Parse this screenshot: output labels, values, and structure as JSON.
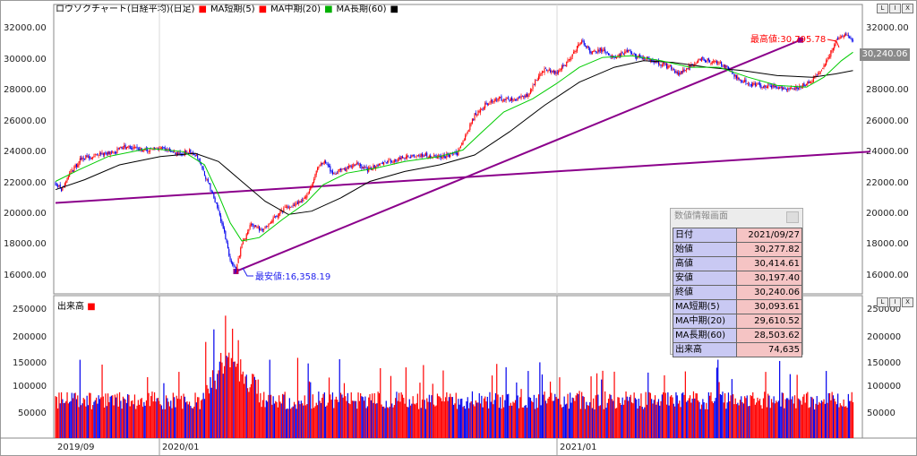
{
  "legend": {
    "title": "ロウソクチャート(日経平均)(日足)",
    "ma_short": "MA短期(5)",
    "ma_mid": "MA中期(20)",
    "ma_long": "MA長期(60)"
  },
  "window_buttons": [
    "L",
    "I",
    "X"
  ],
  "price_axis": {
    "ticks": [
      "32000.00",
      "30000.00",
      "28000.00",
      "26000.00",
      "24000.00",
      "22000.00",
      "20000.00",
      "18000.00",
      "16000.00"
    ],
    "right_ticks": [
      "32000.00",
      "28000.00",
      "26000.00",
      "24000.00",
      "22000.00",
      "20000.00",
      "18000.00",
      "16000.00"
    ],
    "last_price": "30,240.06"
  },
  "annotations": {
    "high": "最高値:30,795.78",
    "low": "最安値:16,358.19"
  },
  "volume": {
    "title": "出来高",
    "ticks": [
      "250000",
      "200000",
      "150000",
      "100000",
      "50000"
    ]
  },
  "date_axis": [
    "2019/09",
    "2020/01",
    "2021/01"
  ],
  "info_panel": {
    "title": "数値情報画面",
    "rows": [
      {
        "label": "日付",
        "value": "2021/09/27"
      },
      {
        "label": "始値",
        "value": "30,277.82"
      },
      {
        "label": "高値",
        "value": "30,414.61"
      },
      {
        "label": "安値",
        "value": "30,197.40"
      },
      {
        "label": "終値",
        "value": "30,240.06"
      },
      {
        "label": "MA短期(5)",
        "value": "30,093.61"
      },
      {
        "label": "MA中期(20)",
        "value": "29,610.52"
      },
      {
        "label": "MA長期(60)",
        "value": "28,503.62"
      },
      {
        "label": "出来高",
        "value": "74,635"
      }
    ]
  },
  "colors": {
    "up": "#ff0000",
    "down": "#0000ee",
    "ma_short": "#ff0000",
    "ma_mid": "#00cc00",
    "ma_long": "#000000",
    "trendline": "#8b008b"
  },
  "chart_data": {
    "type": "candlestick",
    "price_range": [
      15000,
      32500
    ],
    "volume_range": [
      0,
      270000
    ],
    "close_path": [
      [
        0,
        21700
      ],
      [
        5,
        21300
      ],
      [
        12,
        22200
      ],
      [
        22,
        23200
      ],
      [
        35,
        23400
      ],
      [
        48,
        23500
      ],
      [
        60,
        23900
      ],
      [
        75,
        23700
      ],
      [
        90,
        23800
      ],
      [
        105,
        23500
      ],
      [
        115,
        23600
      ],
      [
        122,
        23300
      ],
      [
        130,
        21900
      ],
      [
        138,
        20400
      ],
      [
        145,
        18800
      ],
      [
        150,
        17000
      ],
      [
        155,
        16400
      ],
      [
        160,
        18000
      ],
      [
        168,
        19200
      ],
      [
        178,
        18800
      ],
      [
        188,
        19600
      ],
      [
        198,
        20200
      ],
      [
        208,
        20500
      ],
      [
        218,
        21100
      ],
      [
        224,
        22400
      ],
      [
        230,
        23000
      ],
      [
        238,
        22300
      ],
      [
        248,
        22500
      ],
      [
        258,
        22900
      ],
      [
        268,
        22500
      ],
      [
        278,
        22800
      ],
      [
        290,
        23100
      ],
      [
        302,
        23300
      ],
      [
        315,
        23400
      ],
      [
        330,
        23300
      ],
      [
        345,
        23500
      ],
      [
        352,
        24500
      ],
      [
        360,
        25800
      ],
      [
        370,
        26500
      ],
      [
        382,
        26800
      ],
      [
        395,
        26700
      ],
      [
        405,
        27000
      ],
      [
        412,
        27800
      ],
      [
        420,
        28600
      ],
      [
        430,
        28400
      ],
      [
        438,
        28900
      ],
      [
        445,
        29600
      ],
      [
        452,
        30300
      ],
      [
        460,
        29600
      ],
      [
        470,
        29800
      ],
      [
        480,
        29200
      ],
      [
        490,
        29700
      ],
      [
        500,
        29300
      ],
      [
        510,
        29200
      ],
      [
        520,
        28900
      ],
      [
        528,
        28700
      ],
      [
        535,
        28300
      ],
      [
        545,
        28800
      ],
      [
        555,
        29200
      ],
      [
        565,
        29000
      ],
      [
        575,
        28800
      ],
      [
        585,
        28100
      ],
      [
        595,
        27700
      ],
      [
        605,
        27600
      ],
      [
        615,
        27500
      ],
      [
        625,
        27400
      ],
      [
        635,
        27400
      ],
      [
        645,
        27700
      ],
      [
        655,
        28200
      ],
      [
        662,
        29000
      ],
      [
        670,
        30300
      ],
      [
        678,
        30700
      ],
      [
        685,
        30240
      ]
    ],
    "ma_mid_path": [
      [
        0,
        21800
      ],
      [
        20,
        22500
      ],
      [
        45,
        23300
      ],
      [
        80,
        23800
      ],
      [
        110,
        23600
      ],
      [
        128,
        22800
      ],
      [
        140,
        21000
      ],
      [
        150,
        19300
      ],
      [
        160,
        18200
      ],
      [
        175,
        18400
      ],
      [
        195,
        19500
      ],
      [
        215,
        20500
      ],
      [
        230,
        21600
      ],
      [
        250,
        22300
      ],
      [
        275,
        22600
      ],
      [
        300,
        23000
      ],
      [
        330,
        23300
      ],
      [
        350,
        23700
      ],
      [
        365,
        24700
      ],
      [
        385,
        26000
      ],
      [
        410,
        26800
      ],
      [
        430,
        27700
      ],
      [
        450,
        28700
      ],
      [
        470,
        29300
      ],
      [
        495,
        29400
      ],
      [
        520,
        29100
      ],
      [
        545,
        28700
      ],
      [
        570,
        28700
      ],
      [
        595,
        28100
      ],
      [
        620,
        27600
      ],
      [
        645,
        27500
      ],
      [
        660,
        28100
      ],
      [
        675,
        29100
      ],
      [
        685,
        29610
      ]
    ],
    "ma_long_path": [
      [
        0,
        21300
      ],
      [
        25,
        21900
      ],
      [
        55,
        22800
      ],
      [
        90,
        23300
      ],
      [
        120,
        23500
      ],
      [
        140,
        23000
      ],
      [
        160,
        21800
      ],
      [
        180,
        20600
      ],
      [
        200,
        19800
      ],
      [
        220,
        20000
      ],
      [
        245,
        20800
      ],
      [
        270,
        21800
      ],
      [
        300,
        22400
      ],
      [
        330,
        22800
      ],
      [
        360,
        23400
      ],
      [
        390,
        24800
      ],
      [
        420,
        26400
      ],
      [
        450,
        27800
      ],
      [
        480,
        28700
      ],
      [
        505,
        29100
      ],
      [
        530,
        29000
      ],
      [
        560,
        28700
      ],
      [
        590,
        28500
      ],
      [
        620,
        28200
      ],
      [
        650,
        28100
      ],
      [
        670,
        28300
      ],
      [
        685,
        28500
      ]
    ],
    "trendlines": [
      {
        "from": [
          0,
          20500
        ],
        "to": [
          700,
          23600
        ]
      },
      {
        "from": [
          155,
          16358
        ],
        "to": [
          640,
          30350
        ]
      }
    ],
    "high": {
      "value": 30795.78,
      "date": "2021/09"
    },
    "low": {
      "value": 16358.19,
      "date": "2020/03"
    },
    "last_close": 30240.06
  }
}
